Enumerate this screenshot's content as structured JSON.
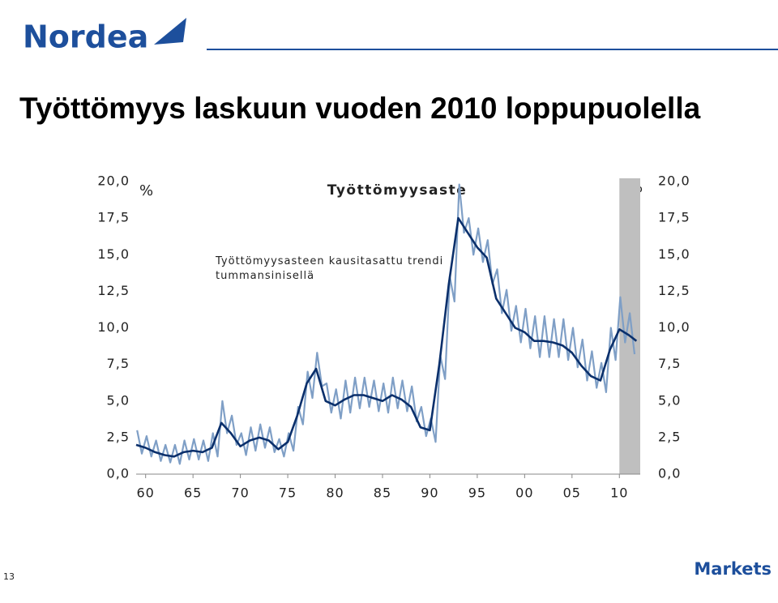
{
  "logo": "Nordea",
  "footer_logo": "Markets",
  "page_number": "13",
  "chart_data": {
    "type": "line",
    "title": "Työttömyys laskuun vuoden 2010 loppupuolella",
    "subtitle": "Työttömyysaste",
    "y_label": "%",
    "y2_label": "%",
    "annotation": "Työttömyysasteen kausitasattu trendi tummansinisellä",
    "xlim": [
      1959,
      2012.2
    ],
    "xticks": [
      {
        "value": 1960,
        "label": "60"
      },
      {
        "value": 1965,
        "label": "65"
      },
      {
        "value": 1970,
        "label": "70"
      },
      {
        "value": 1975,
        "label": "75"
      },
      {
        "value": 1980,
        "label": "80"
      },
      {
        "value": 1985,
        "label": "85"
      },
      {
        "value": 1990,
        "label": "90"
      },
      {
        "value": 1995,
        "label": "95"
      },
      {
        "value": 2000,
        "label": "00"
      },
      {
        "value": 2005,
        "label": "05"
      },
      {
        "value": 2010,
        "label": "10"
      }
    ],
    "ylim": [
      0,
      20
    ],
    "yticks": [
      {
        "value": 0,
        "label": "0,0"
      },
      {
        "value": 2.5,
        "label": "2,5"
      },
      {
        "value": 5,
        "label": "5,0"
      },
      {
        "value": 7.5,
        "label": "7,5"
      },
      {
        "value": 10,
        "label": "10,0"
      },
      {
        "value": 12.5,
        "label": "12,5"
      },
      {
        "value": 15,
        "label": "15,0"
      },
      {
        "value": 17.5,
        "label": "17,5"
      },
      {
        "value": 20,
        "label": "20,0"
      }
    ],
    "y2lim": [
      0,
      20
    ],
    "y2ticks": [
      {
        "value": 0,
        "label": "0,0"
      },
      {
        "value": 2.5,
        "label": "2,5"
      },
      {
        "value": 5,
        "label": "5,0"
      },
      {
        "value": 7.5,
        "label": "7,5"
      },
      {
        "value": 10,
        "label": "10,0"
      },
      {
        "value": 12.5,
        "label": "12,5"
      },
      {
        "value": 15,
        "label": "15,0"
      },
      {
        "value": 17.5,
        "label": "17,5"
      },
      {
        "value": 20,
        "label": "20,0"
      }
    ],
    "shaded_xrange": [
      2010,
      2012.2
    ],
    "shade_color": "#bfbfbf",
    "series": [
      {
        "color": "#7f9fc6",
        "width": 2.2,
        "x": [
          1959.1,
          1959.6,
          1960.1,
          1960.6,
          1961.1,
          1961.6,
          1962.1,
          1962.6,
          1963.1,
          1963.6,
          1964.1,
          1964.6,
          1965.1,
          1965.6,
          1966.1,
          1966.6,
          1967.1,
          1967.6,
          1968.1,
          1968.6,
          1969.1,
          1969.6,
          1970.1,
          1970.6,
          1971.1,
          1971.6,
          1972.1,
          1972.6,
          1973.1,
          1973.6,
          1974.1,
          1974.6,
          1975.1,
          1975.6,
          1976.1,
          1976.6,
          1977.1,
          1977.6,
          1978.1,
          1978.6,
          1979.1,
          1979.6,
          1980.1,
          1980.6,
          1981.1,
          1981.6,
          1982.1,
          1982.6,
          1983.1,
          1983.6,
          1984.1,
          1984.6,
          1985.1,
          1985.6,
          1986.1,
          1986.6,
          1987.1,
          1987.6,
          1988.1,
          1988.6,
          1989.1,
          1989.6,
          1990.1,
          1990.6,
          1991.1,
          1991.6,
          1992.1,
          1992.6,
          1993.1,
          1993.6,
          1994.1,
          1994.6,
          1995.1,
          1995.6,
          1996.1,
          1996.6,
          1997.1,
          1997.6,
          1998.1,
          1998.6,
          1999.1,
          1999.6,
          2000.1,
          2000.6,
          2001.1,
          2001.6,
          2002.1,
          2002.6,
          2003.1,
          2003.6,
          2004.1,
          2004.6,
          2005.1,
          2005.6,
          2006.1,
          2006.6,
          2007.1,
          2007.6,
          2008.1,
          2008.6,
          2009.1,
          2009.6,
          2010.1,
          2010.6,
          2011.1,
          2011.6
        ],
        "values": [
          3.0,
          1.4,
          2.6,
          1.2,
          2.3,
          0.9,
          2.0,
          0.8,
          2.0,
          0.7,
          2.3,
          1.0,
          2.4,
          1.0,
          2.3,
          0.9,
          2.8,
          1.2,
          5.0,
          2.8,
          4.0,
          2.0,
          2.8,
          1.3,
          3.2,
          1.6,
          3.4,
          1.8,
          3.2,
          1.5,
          2.4,
          1.2,
          2.8,
          1.6,
          4.6,
          3.4,
          7.0,
          5.2,
          8.3,
          6.0,
          6.2,
          4.2,
          5.8,
          3.8,
          6.4,
          4.2,
          6.6,
          4.5,
          6.6,
          4.6,
          6.4,
          4.3,
          6.2,
          4.2,
          6.6,
          4.5,
          6.4,
          4.3,
          6.0,
          3.6,
          4.6,
          2.6,
          3.8,
          2.2,
          8.1,
          6.5,
          13.5,
          11.8,
          19.8,
          16.5,
          17.5,
          15.0,
          16.8,
          14.5,
          16.0,
          13.0,
          14.0,
          11.0,
          12.6,
          9.8,
          11.5,
          9.0,
          11.3,
          8.6,
          10.8,
          8.0,
          10.8,
          8.0,
          10.6,
          8.0,
          10.6,
          7.8,
          10.0,
          7.3,
          9.2,
          6.4,
          8.4,
          5.9,
          7.6,
          5.6,
          10.0,
          7.8,
          12.1,
          9.0,
          11.0,
          8.2
        ]
      },
      {
        "color": "#0a2f6b",
        "width": 2.6,
        "x": [
          1959,
          1960,
          1961,
          1962,
          1963,
          1964,
          1965,
          1966,
          1967,
          1968,
          1969,
          1970,
          1971,
          1972,
          1973,
          1974,
          1975,
          1976,
          1977,
          1978,
          1979,
          1980,
          1981,
          1982,
          1983,
          1984,
          1985,
          1986,
          1987,
          1988,
          1989,
          1990,
          1991,
          1992,
          1993,
          1994,
          1995,
          1996,
          1997,
          1998,
          1999,
          2000,
          2001,
          2002,
          2003,
          2004,
          2005,
          2006,
          2007,
          2008,
          2009,
          2010,
          2011,
          2011.8
        ],
        "values": [
          2.0,
          1.8,
          1.5,
          1.3,
          1.2,
          1.5,
          1.6,
          1.5,
          1.8,
          3.5,
          2.8,
          1.9,
          2.3,
          2.5,
          2.3,
          1.7,
          2.2,
          4.0,
          6.2,
          7.2,
          5.0,
          4.7,
          5.1,
          5.4,
          5.4,
          5.2,
          5.0,
          5.4,
          5.1,
          4.6,
          3.2,
          3.0,
          7.5,
          13.0,
          17.5,
          16.5,
          15.5,
          14.8,
          12.0,
          11.0,
          10.0,
          9.7,
          9.1,
          9.1,
          9.0,
          8.8,
          8.3,
          7.4,
          6.7,
          6.4,
          8.5,
          9.9,
          9.5,
          9.1
        ]
      }
    ]
  }
}
